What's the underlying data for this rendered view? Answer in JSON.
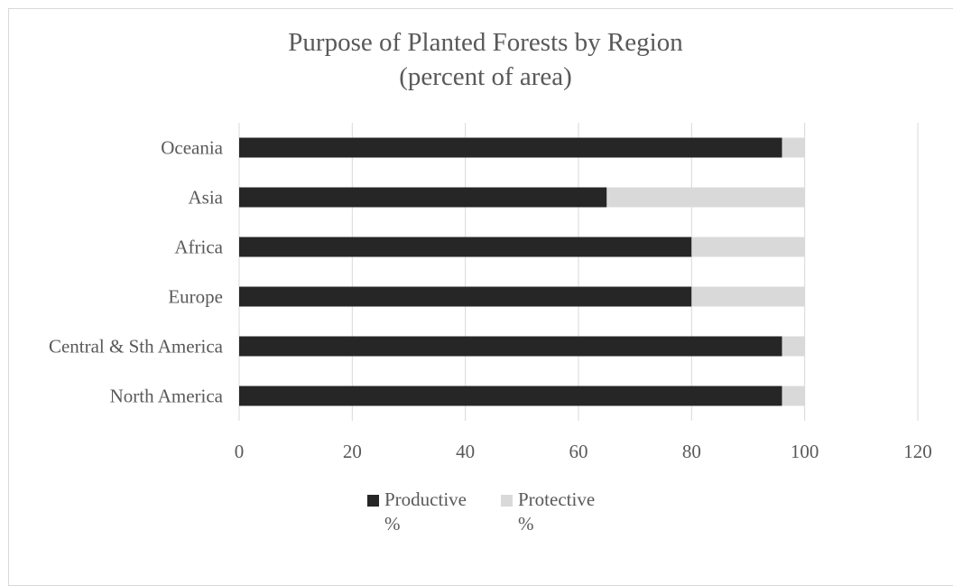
{
  "chart_data": {
    "type": "bar",
    "orientation": "horizontal",
    "stacked": true,
    "title": "Purpose of Planted Forests by Region (percent of area)",
    "title_lines": [
      "Purpose of Planted Forests by Region",
      "(percent of area)"
    ],
    "categories": [
      "North America",
      "Central & Sth America",
      "Europe",
      "Africa",
      "Asia",
      "Oceania"
    ],
    "series": [
      {
        "name": "Productive %",
        "legend_lines": [
          "Productive",
          "%"
        ],
        "color": "#262626",
        "values": [
          96,
          96,
          80,
          80,
          65,
          96
        ]
      },
      {
        "name": "Protective %",
        "legend_lines": [
          "Protective",
          "%"
        ],
        "color": "#d9d9d9",
        "values": [
          4,
          4,
          20,
          20,
          35,
          4
        ]
      }
    ],
    "xlim": [
      0,
      120
    ],
    "xticks": [
      "0",
      "20",
      "40",
      "60",
      "80",
      "100",
      "120"
    ],
    "grid": true,
    "legend_position": "bottom"
  }
}
